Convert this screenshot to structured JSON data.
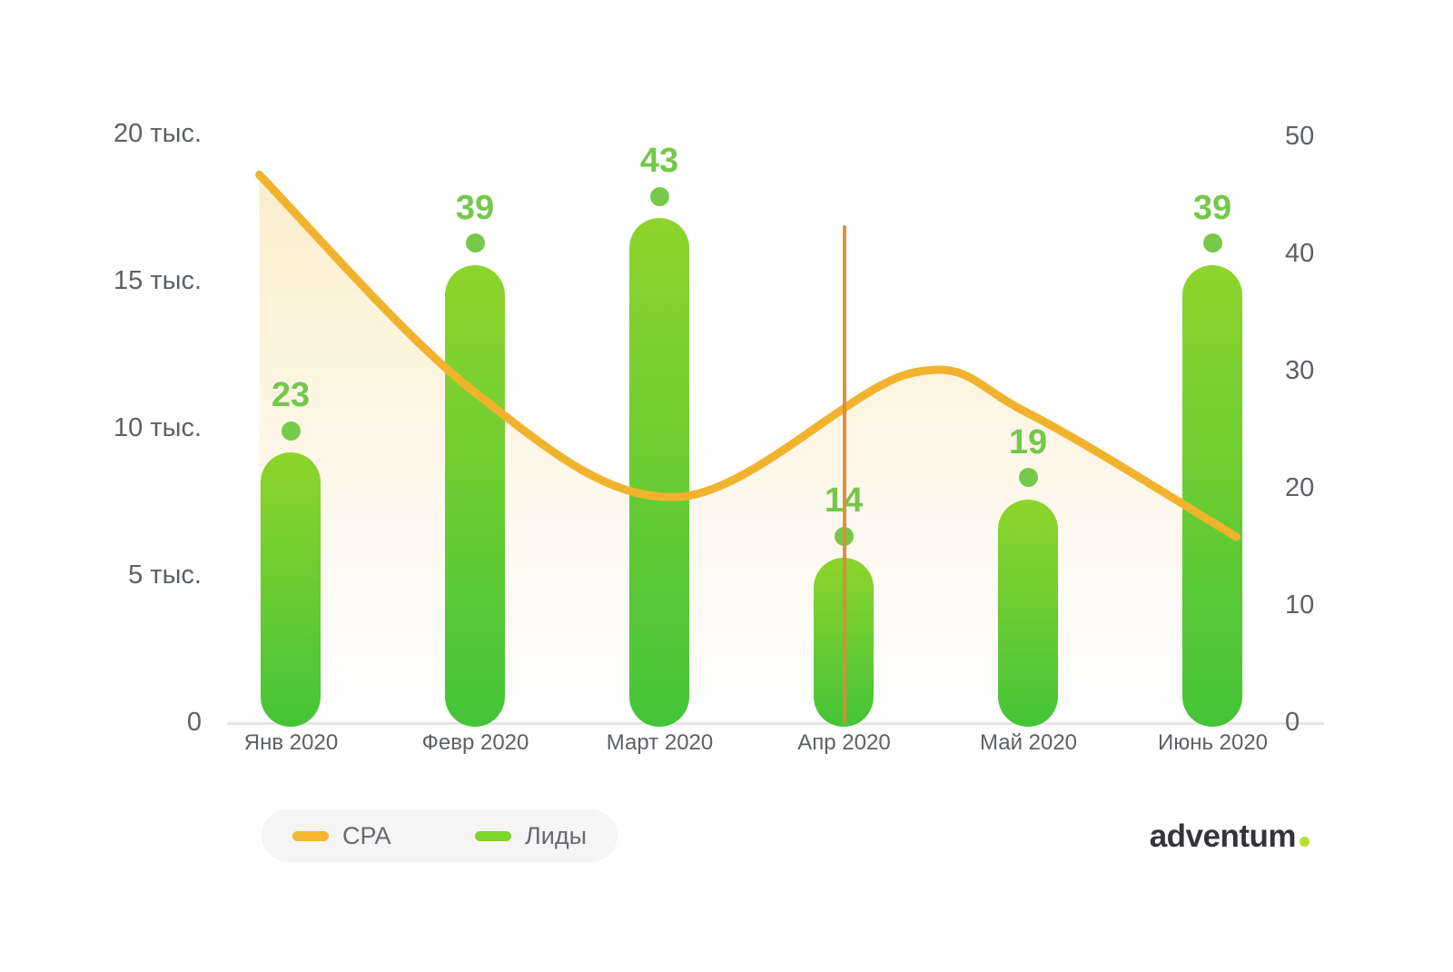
{
  "chart_data": {
    "type": "combo (bar + line)",
    "categories": [
      "Янв 2020",
      "Февр 2020",
      "Март 2020",
      "Апр 2020",
      "Май 2020",
      "Июнь 2020"
    ],
    "series": [
      {
        "name": "Лиды",
        "type": "bar",
        "axis": "right",
        "values": [
          23,
          39,
          43,
          14,
          19,
          39
        ],
        "bar_color_top": "#8ed42c",
        "bar_color_bottom": "#45c438",
        "point_color": "#77c94a",
        "value_label_color": "#74c84b"
      },
      {
        "name": "CPA",
        "type": "line",
        "axis": "left",
        "unit": "тыс.",
        "values_thousands": [
          17.6,
          11.2,
          7.9,
          11.9,
          10.5,
          7.0
        ],
        "curve_samples": [
          {
            "month_frac": -0.17,
            "value": 18.6
          },
          {
            "month_frac": 1.0,
            "value": 11.2
          },
          {
            "month_frac": 2.1,
            "value": 7.65
          },
          {
            "month_frac": 3.36,
            "value": 11.85
          },
          {
            "month_frac": 4.0,
            "value": 10.5
          },
          {
            "month_frac": 5.13,
            "value": 6.3
          }
        ],
        "line_color": "#f1b32e",
        "area_fill_color": "#f3b833"
      }
    ],
    "left_axis": {
      "tick_labels": [
        "20 тыс.",
        "15 тыс.",
        "10 тыс.",
        "5 тыс.",
        "0"
      ],
      "tick_values_thousands": [
        20,
        15,
        10,
        5,
        0
      ],
      "range_thousands": [
        0,
        20
      ]
    },
    "right_axis": {
      "tick_labels": [
        "50",
        "40",
        "30",
        "20",
        "10",
        "0"
      ],
      "tick_values": [
        50,
        40,
        30,
        20,
        10,
        0
      ],
      "range": [
        0,
        50
      ]
    },
    "annotations": [
      {
        "type": "vertical-line",
        "category": "Апр 2020",
        "color": "#da8c38"
      }
    ],
    "grid": false,
    "legend_position": "bottom-left"
  },
  "legend": {
    "items": [
      {
        "label": "CPA",
        "color": "#f3b72f"
      },
      {
        "label": "Лиды",
        "color": "#7ed32c"
      }
    ]
  },
  "branding": {
    "logo_text": "adventum"
  }
}
